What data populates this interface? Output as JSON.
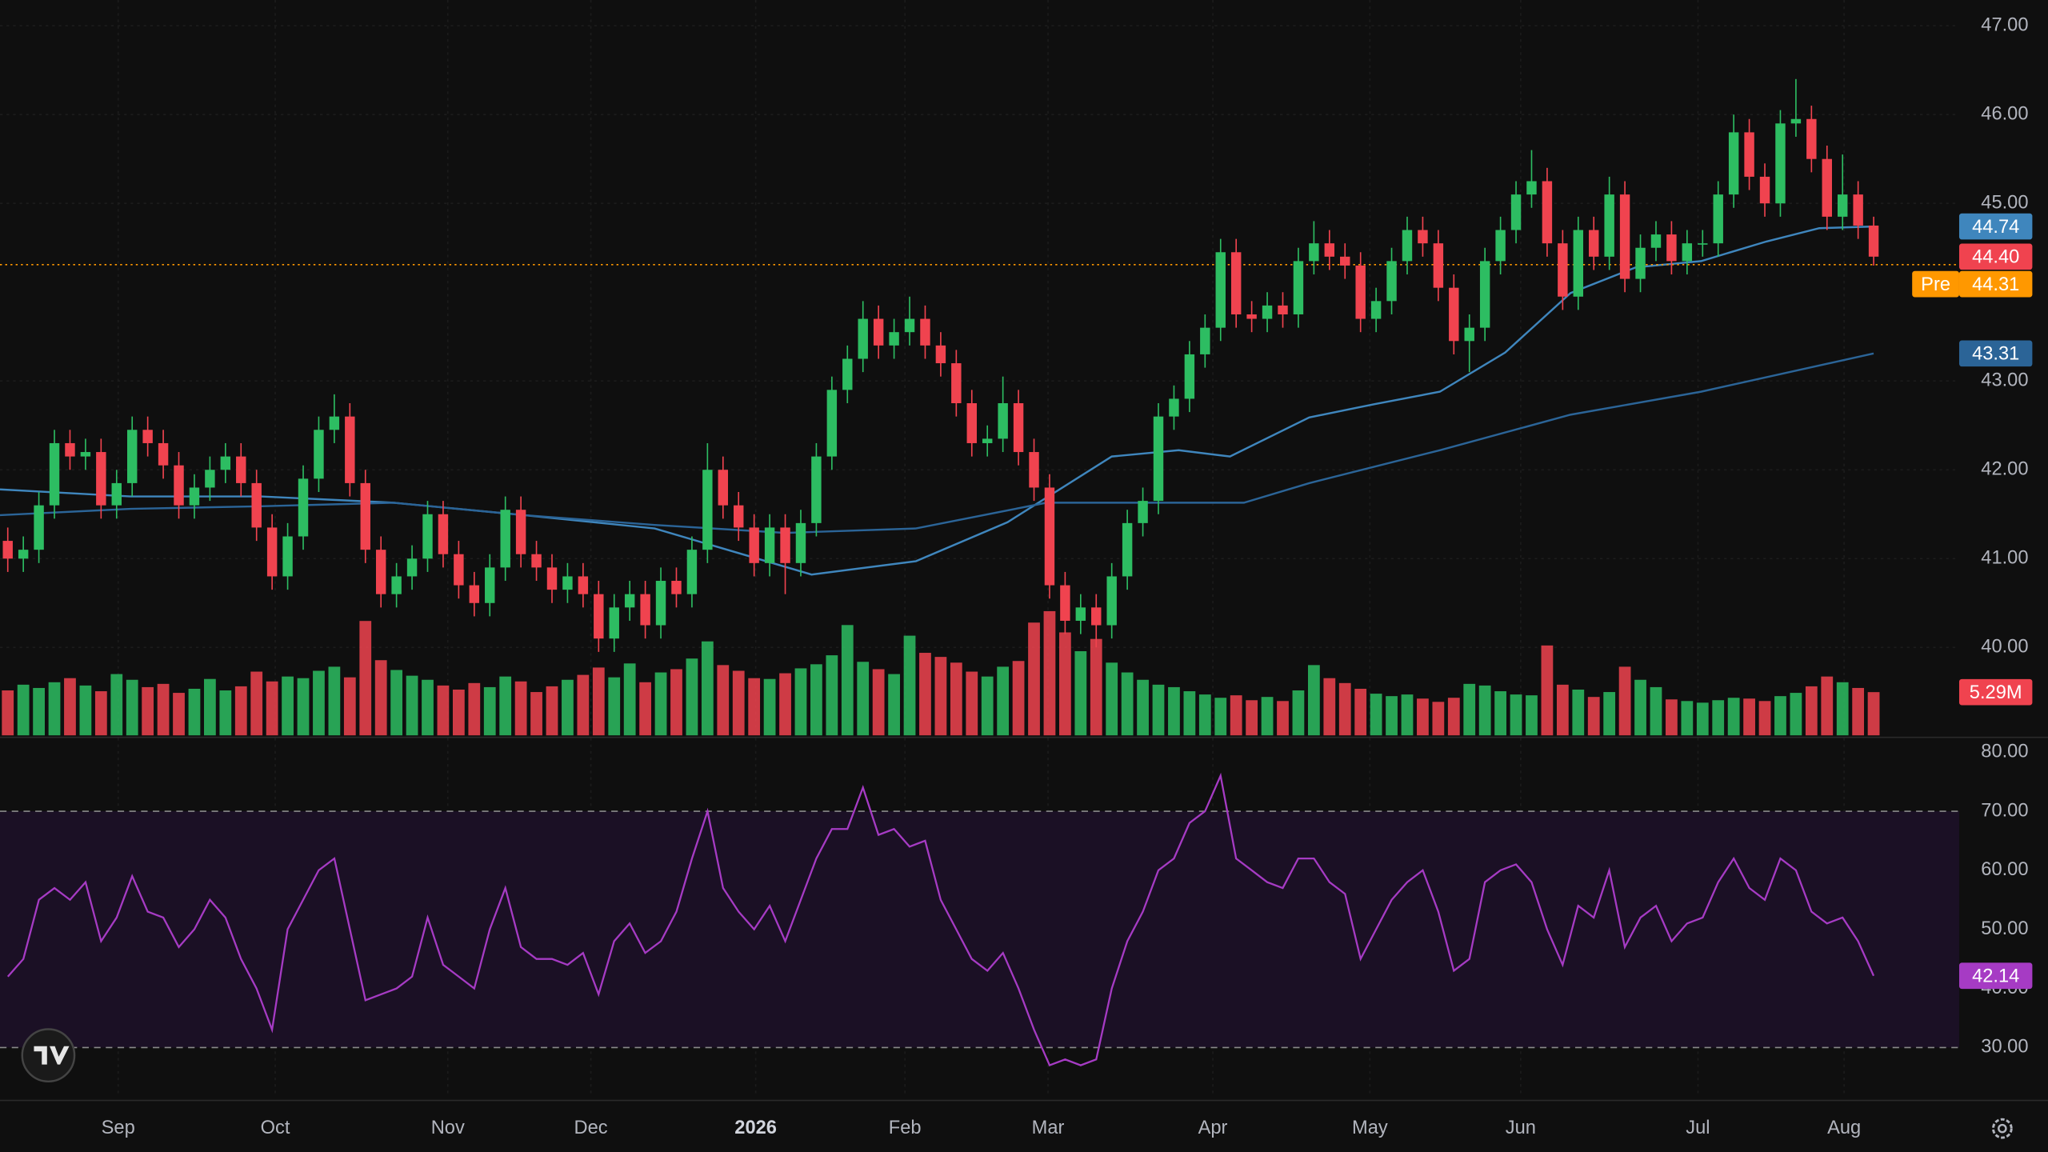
{
  "chart_data": {
    "type": "candlestick",
    "xlim": [
      0,
      126
    ],
    "xticks": [
      {
        "value": 7.6,
        "label": "Sep"
      },
      {
        "value": 17.7,
        "label": "Oct"
      },
      {
        "value": 28.8,
        "label": "Nov"
      },
      {
        "value": 38.0,
        "label": "Dec"
      },
      {
        "value": 48.6,
        "label": "2026"
      },
      {
        "value": 58.2,
        "label": "Feb"
      },
      {
        "value": 67.4,
        "label": "Mar"
      },
      {
        "value": 78.0,
        "label": "Apr"
      },
      {
        "value": 88.1,
        "label": "May"
      },
      {
        "value": 97.8,
        "label": "Jun"
      },
      {
        "value": 109.2,
        "label": "Jul"
      },
      {
        "value": 118.6,
        "label": "Aug"
      }
    ],
    "ylim": [
      39.01,
      47.29
    ],
    "yticks": [
      {
        "value": 40,
        "label": "40.00"
      },
      {
        "value": 41,
        "label": "41.00"
      },
      {
        "value": 42,
        "label": "42.00"
      },
      {
        "value": 43,
        "label": "43.00"
      },
      {
        "value": 45,
        "label": "45.00"
      },
      {
        "value": 46,
        "label": "46.00"
      },
      {
        "value": 47,
        "label": "47.00"
      }
    ],
    "grid": true,
    "up_color": "#2dbd62",
    "down_color": "#f0434f",
    "open": [
      41.2,
      41.0,
      41.1,
      41.6,
      42.3,
      42.15,
      42.2,
      41.6,
      41.85,
      42.45,
      42.3,
      42.05,
      41.6,
      41.8,
      42.0,
      42.15,
      41.85,
      41.35,
      40.8,
      41.25,
      41.9,
      42.45,
      42.6,
      41.85,
      41.1,
      40.6,
      40.8,
      41.0,
      41.5,
      41.05,
      40.7,
      40.5,
      40.9,
      41.55,
      41.05,
      40.9,
      40.65,
      40.8,
      40.6,
      40.1,
      40.45,
      40.6,
      40.25,
      40.75,
      40.6,
      41.1,
      42.0,
      41.6,
      41.35,
      40.95,
      41.35,
      40.95,
      41.4,
      42.15,
      42.9,
      43.25,
      43.7,
      43.4,
      43.55,
      43.7,
      43.4,
      43.2,
      42.75,
      42.3,
      42.35,
      42.75,
      42.2,
      41.8,
      40.7,
      40.3,
      40.45,
      40.25,
      40.8,
      41.4,
      41.65,
      42.6,
      42.8,
      43.3,
      43.6,
      44.45,
      43.75,
      43.7,
      43.85,
      43.75,
      44.35,
      44.55,
      44.4,
      44.3,
      43.7,
      43.9,
      44.35,
      44.7,
      44.55,
      44.05,
      43.45,
      43.6,
      44.35,
      44.7,
      45.1,
      45.25,
      44.55,
      43.95,
      44.7,
      44.4,
      45.1,
      44.15,
      44.5,
      44.65,
      44.35,
      44.55,
      44.55,
      45.1,
      45.8,
      45.3,
      45.0,
      45.9,
      45.95,
      45.5,
      44.85,
      45.1,
      44.75
    ],
    "high": [
      41.35,
      41.25,
      41.75,
      42.45,
      42.45,
      42.35,
      42.35,
      42.0,
      42.6,
      42.6,
      42.45,
      42.2,
      41.95,
      42.15,
      42.3,
      42.3,
      42.0,
      41.5,
      41.4,
      42.05,
      42.6,
      42.85,
      42.75,
      42.0,
      41.25,
      40.95,
      41.15,
      41.65,
      41.65,
      41.2,
      40.85,
      41.05,
      41.7,
      41.7,
      41.2,
      41.05,
      40.95,
      40.95,
      40.75,
      40.6,
      40.75,
      40.75,
      40.9,
      40.9,
      41.25,
      42.3,
      42.15,
      41.75,
      41.5,
      41.5,
      41.5,
      41.55,
      42.3,
      43.05,
      43.4,
      43.9,
      43.85,
      43.7,
      43.95,
      43.85,
      43.55,
      43.35,
      42.9,
      42.5,
      43.05,
      42.9,
      42.35,
      41.95,
      40.85,
      40.6,
      40.6,
      40.95,
      41.55,
      41.8,
      42.75,
      42.95,
      43.45,
      43.75,
      44.6,
      44.6,
      43.9,
      44.0,
      44.0,
      44.5,
      44.8,
      44.7,
      44.55,
      44.45,
      44.05,
      44.5,
      44.85,
      44.85,
      44.7,
      44.2,
      43.75,
      44.5,
      44.85,
      45.25,
      45.6,
      45.4,
      44.7,
      44.85,
      44.85,
      45.3,
      45.25,
      44.65,
      44.8,
      44.8,
      44.7,
      44.7,
      45.25,
      46.0,
      45.95,
      45.45,
      46.05,
      46.4,
      46.1,
      45.65,
      45.55,
      45.25,
      44.85
    ],
    "low": [
      40.85,
      40.85,
      40.95,
      41.45,
      42.0,
      42.0,
      41.45,
      41.45,
      41.7,
      42.15,
      41.9,
      41.45,
      41.45,
      41.65,
      41.85,
      41.7,
      41.2,
      40.65,
      40.65,
      41.1,
      41.75,
      42.3,
      41.7,
      40.95,
      40.45,
      40.45,
      40.65,
      40.85,
      40.9,
      40.55,
      40.35,
      40.35,
      40.75,
      40.9,
      40.75,
      40.5,
      40.5,
      40.45,
      39.95,
      39.95,
      40.3,
      40.1,
      40.1,
      40.45,
      40.45,
      40.95,
      41.45,
      41.2,
      40.8,
      40.8,
      40.6,
      40.8,
      41.25,
      42.0,
      42.75,
      43.1,
      43.25,
      43.25,
      43.4,
      43.25,
      43.05,
      42.6,
      42.15,
      42.15,
      42.2,
      42.05,
      41.65,
      40.55,
      40.15,
      40.15,
      40.0,
      40.1,
      40.65,
      41.25,
      41.5,
      42.45,
      42.65,
      43.15,
      43.45,
      43.6,
      43.55,
      43.55,
      43.6,
      43.6,
      44.2,
      44.25,
      44.15,
      43.55,
      43.55,
      43.75,
      44.2,
      44.4,
      43.9,
      43.3,
      43.1,
      43.45,
      44.2,
      44.55,
      44.95,
      44.4,
      43.8,
      43.8,
      44.25,
      44.25,
      44.0,
      44.0,
      44.35,
      44.2,
      44.2,
      44.4,
      44.4,
      44.95,
      45.15,
      44.85,
      44.85,
      45.75,
      45.35,
      44.7,
      44.7,
      44.6,
      44.3
    ],
    "close": [
      41.0,
      41.1,
      41.6,
      42.3,
      42.15,
      42.2,
      41.6,
      41.85,
      42.45,
      42.3,
      42.05,
      41.6,
      41.8,
      42.0,
      42.15,
      41.85,
      41.35,
      40.8,
      41.25,
      41.9,
      42.45,
      42.6,
      41.85,
      41.1,
      40.6,
      40.8,
      41.0,
      41.5,
      41.05,
      40.7,
      40.5,
      40.9,
      41.55,
      41.05,
      40.9,
      40.65,
      40.8,
      40.6,
      40.1,
      40.45,
      40.6,
      40.25,
      40.75,
      40.6,
      41.1,
      42.0,
      41.6,
      41.35,
      40.95,
      41.35,
      40.95,
      41.4,
      42.15,
      42.9,
      43.25,
      43.7,
      43.4,
      43.55,
      43.7,
      43.4,
      43.2,
      42.75,
      42.3,
      42.35,
      42.75,
      42.2,
      41.8,
      40.7,
      40.3,
      40.45,
      40.25,
      40.8,
      41.4,
      41.65,
      42.6,
      42.8,
      43.3,
      43.6,
      44.45,
      43.75,
      43.7,
      43.85,
      43.75,
      44.35,
      44.55,
      44.4,
      44.3,
      43.7,
      43.9,
      44.35,
      44.7,
      44.55,
      44.05,
      43.45,
      43.6,
      44.35,
      44.7,
      45.1,
      45.25,
      44.55,
      43.95,
      44.7,
      44.4,
      45.1,
      44.15,
      44.5,
      44.65,
      44.35,
      44.55,
      44.55,
      45.1,
      45.8,
      45.3,
      45.0,
      45.9,
      45.95,
      45.5,
      44.85,
      45.1,
      44.75,
      44.4
    ],
    "last_price": {
      "value": 44.4,
      "label": "44.40",
      "color": "#f0434f"
    },
    "premarket": {
      "name": "Pre",
      "value": 44.31,
      "label": "44.31",
      "color": "#ff9800"
    },
    "moving_averages": [
      {
        "color": "#3f86bd",
        "x": [
          0,
          8.4,
          16.8,
          25.3,
          33.7,
          42.1,
          52.2,
          58.9,
          64.8,
          71.5,
          75.8,
          79.1,
          84.2,
          88.4,
          92.6,
          96.8,
          101,
          105.2,
          109.4,
          113.6,
          117,
          120.5
        ],
        "values": [
          41.78,
          41.7,
          41.7,
          41.63,
          41.49,
          41.34,
          40.82,
          40.97,
          41.41,
          42.15,
          42.22,
          42.15,
          42.59,
          42.74,
          42.88,
          43.32,
          43.99,
          44.28,
          44.35,
          44.57,
          44.72,
          44.74
        ],
        "label": "44.74"
      },
      {
        "color": "#2b6497",
        "x": [
          0,
          8.4,
          16.8,
          25.3,
          33.7,
          42.1,
          50.5,
          58.9,
          67.3,
          75.8,
          80,
          84.2,
          92.6,
          101,
          109.4,
          120.5
        ],
        "values": [
          41.49,
          41.56,
          41.59,
          41.63,
          41.49,
          41.38,
          41.29,
          41.34,
          41.63,
          41.63,
          41.63,
          41.85,
          42.22,
          42.62,
          42.88,
          43.31
        ],
        "label": "43.31"
      }
    ],
    "volume": {
      "ylim": [
        0,
        90
      ],
      "label": "5.29M",
      "values": [
        5.5,
        6.2,
        5.8,
        6.5,
        7.0,
        6.1,
        5.4,
        7.5,
        6.8,
        5.9,
        6.3,
        5.2,
        5.7,
        6.9,
        5.5,
        6.0,
        7.8,
        6.6,
        7.2,
        7.0,
        7.9,
        8.4,
        7.1,
        14.0,
        9.2,
        8.0,
        7.3,
        6.8,
        6.1,
        5.6,
        6.4,
        5.9,
        7.2,
        6.6,
        5.3,
        6.0,
        6.8,
        7.4,
        8.3,
        7.1,
        8.8,
        6.5,
        7.7,
        8.1,
        9.4,
        11.5,
        8.6,
        7.9,
        7.0,
        6.9,
        7.6,
        8.2,
        8.7,
        9.8,
        13.5,
        9.0,
        8.1,
        7.5,
        12.2,
        10.1,
        9.6,
        8.9,
        7.8,
        7.2,
        8.4,
        9.1,
        13.8,
        15.2,
        12.6,
        10.3,
        11.8,
        8.9,
        7.7,
        6.8,
        6.2,
        5.9,
        5.4,
        5.0,
        4.6,
        4.9,
        4.3,
        4.7,
        4.2,
        5.5,
        8.6,
        7.0,
        6.4,
        5.7,
        5.1,
        4.8,
        5.0,
        4.5,
        4.1,
        4.6,
        6.3,
        6.1,
        5.4,
        5.0,
        4.9,
        11.0,
        6.2,
        5.6,
        4.7,
        5.3,
        8.4,
        6.8,
        5.9,
        4.4,
        4.2,
        4.0,
        4.3,
        4.6,
        4.5,
        4.2,
        4.8,
        5.2,
        6.0,
        7.2,
        6.5,
        5.8,
        5.29
      ]
    },
    "rsi": {
      "color": "#a63bc4",
      "ylim": [
        21.6,
        82.4
      ],
      "bands": [
        30,
        70
      ],
      "label": "42.14",
      "yticks": [
        {
          "value": 30,
          "label": "30.00"
        },
        {
          "value": 40,
          "label": "40.00"
        },
        {
          "value": 50,
          "label": "50.00"
        },
        {
          "value": 60,
          "label": "60.00"
        },
        {
          "value": 70,
          "label": "70.00"
        },
        {
          "value": 80,
          "label": "80.00"
        }
      ],
      "values": [
        42,
        45,
        55,
        57,
        55,
        58,
        48,
        52,
        59,
        53,
        52,
        47,
        50,
        55,
        52,
        45,
        40,
        33,
        50,
        55,
        60,
        62,
        50,
        38,
        39,
        40,
        42,
        52,
        44,
        42,
        40,
        50,
        57,
        47,
        45,
        45,
        44,
        46,
        39,
        48,
        51,
        46,
        48,
        53,
        62,
        70,
        57,
        53,
        50,
        54,
        48,
        55,
        62,
        67,
        67,
        74,
        66,
        67,
        64,
        65,
        55,
        50,
        45,
        43,
        46,
        40,
        33,
        27,
        28,
        27,
        28,
        40,
        48,
        53,
        60,
        62,
        68,
        70,
        76,
        62,
        60,
        58,
        57,
        62,
        62,
        58,
        56,
        45,
        50,
        55,
        58,
        60,
        53,
        43,
        45,
        58,
        60,
        61,
        58,
        50,
        44,
        54,
        52,
        60,
        47,
        52,
        54,
        48,
        51,
        52,
        58,
        62,
        57,
        55,
        62,
        60,
        53,
        51,
        52,
        48,
        42.14
      ]
    }
  }
}
